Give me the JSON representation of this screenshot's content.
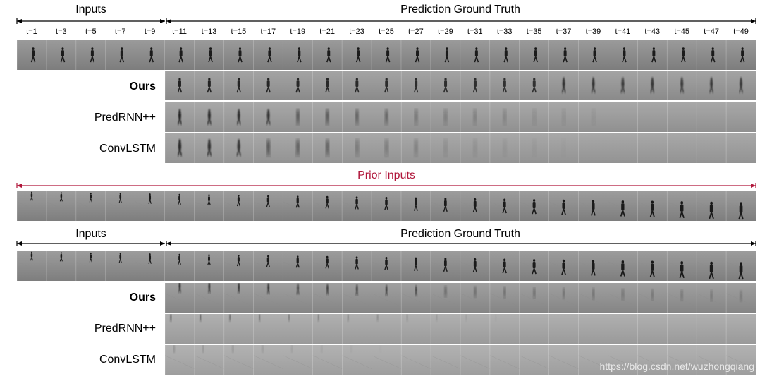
{
  "section1": {
    "inputs_label": "Inputs",
    "truth_label": "Prediction Ground Truth",
    "timesteps": [
      "t=1",
      "t=3",
      "t=5",
      "t=7",
      "t=9",
      "t=11",
      "t=13",
      "t=15",
      "t=17",
      "t=19",
      "t=21",
      "t=23",
      "t=25",
      "t=27",
      "t=29",
      "t=31",
      "t=33",
      "t=35",
      "t=37",
      "t=39",
      "t=41",
      "t=43",
      "t=45",
      "t=47",
      "t=49"
    ],
    "rows": [
      {
        "label": "",
        "name": "ground-truth-strip"
      },
      {
        "label": "Ours",
        "name": "ours-strip",
        "bold": true
      },
      {
        "label": "PredRNN++",
        "name": "predrnn-strip"
      },
      {
        "label": "ConvLSTM",
        "name": "convlstm-strip"
      }
    ]
  },
  "prior": {
    "label": "Prior Inputs"
  },
  "section2": {
    "inputs_label": "Inputs",
    "truth_label": "Prediction Ground Truth",
    "rows": [
      {
        "label": "",
        "name": "ground-truth-strip-2"
      },
      {
        "label": "Ours",
        "name": "ours-strip-2",
        "bold": true
      },
      {
        "label": "PredRNN++",
        "name": "predrnn-strip-2"
      },
      {
        "label": "ConvLSTM",
        "name": "convlstm-strip-2"
      }
    ]
  },
  "watermark": "https://blog.csdn.net/wuzhongqiang",
  "colors": {
    "prior_accent": "#b0163a",
    "arrow": "#000000"
  }
}
